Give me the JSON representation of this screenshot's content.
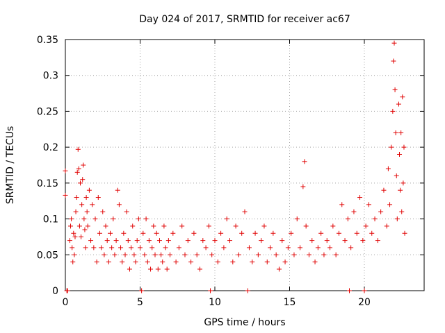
{
  "chart_data": {
    "type": "scatter",
    "title": "Day 024 of 2017, SRMTID for receiver ac67",
    "xlabel": "GPS time / hours",
    "ylabel": "SRMTID / TECUs",
    "xlim": [
      0,
      24
    ],
    "ylim": [
      0,
      0.35
    ],
    "xticks": [
      0,
      5,
      10,
      15,
      20
    ],
    "xtick_labels": [
      "0",
      "5",
      "10",
      "15",
      "20"
    ],
    "yticks": [
      0,
      0.05,
      0.1,
      0.15,
      0.2,
      0.25,
      0.3,
      0.35
    ],
    "ytick_labels": [
      "0",
      "0.05",
      "0.1",
      "0.15",
      "0.2",
      "0.25",
      "0.3",
      "0.35"
    ],
    "grid": true,
    "marker": "+",
    "color": "#e00000",
    "series": [
      {
        "name": "SRMTID",
        "points": [
          [
            0.0,
            0.167
          ],
          [
            0.0,
            0.133
          ],
          [
            0.1,
            0.0
          ],
          [
            0.15,
            0.0
          ],
          [
            0.3,
            0.07
          ],
          [
            0.35,
            0.09
          ],
          [
            0.4,
            0.1
          ],
          [
            0.45,
            0.06
          ],
          [
            0.5,
            0.04
          ],
          [
            0.55,
            0.08
          ],
          [
            0.6,
            0.05
          ],
          [
            0.65,
            0.075
          ],
          [
            0.7,
            0.11
          ],
          [
            0.75,
            0.13
          ],
          [
            0.8,
            0.165
          ],
          [
            0.85,
            0.197
          ],
          [
            0.9,
            0.17
          ],
          [
            0.95,
            0.09
          ],
          [
            1.0,
            0.15
          ],
          [
            1.05,
            0.075
          ],
          [
            1.1,
            0.12
          ],
          [
            1.15,
            0.155
          ],
          [
            1.2,
            0.175
          ],
          [
            1.25,
            0.1
          ],
          [
            1.3,
            0.085
          ],
          [
            1.35,
            0.06
          ],
          [
            1.4,
            0.13
          ],
          [
            1.45,
            0.11
          ],
          [
            1.5,
            0.09
          ],
          [
            1.6,
            0.14
          ],
          [
            1.7,
            0.07
          ],
          [
            1.8,
            0.12
          ],
          [
            1.9,
            0.06
          ],
          [
            2.0,
            0.1
          ],
          [
            2.1,
            0.04
          ],
          [
            2.2,
            0.13
          ],
          [
            2.3,
            0.08
          ],
          [
            2.4,
            0.06
          ],
          [
            2.5,
            0.11
          ],
          [
            2.6,
            0.05
          ],
          [
            2.7,
            0.09
          ],
          [
            2.8,
            0.07
          ],
          [
            2.9,
            0.04
          ],
          [
            3.0,
            0.08
          ],
          [
            3.1,
            0.06
          ],
          [
            3.2,
            0.1
          ],
          [
            3.3,
            0.05
          ],
          [
            3.4,
            0.07
          ],
          [
            3.5,
            0.14
          ],
          [
            3.6,
            0.12
          ],
          [
            3.7,
            0.06
          ],
          [
            3.8,
            0.04
          ],
          [
            3.9,
            0.08
          ],
          [
            4.0,
            0.05
          ],
          [
            4.1,
            0.11
          ],
          [
            4.2,
            0.07
          ],
          [
            4.3,
            0.03
          ],
          [
            4.4,
            0.06
          ],
          [
            4.5,
            0.09
          ],
          [
            4.6,
            0.05
          ],
          [
            4.7,
            0.04
          ],
          [
            4.8,
            0.07
          ],
          [
            4.9,
            0.1
          ],
          [
            5.0,
            0.06
          ],
          [
            5.1,
            0.0
          ],
          [
            5.2,
            0.08
          ],
          [
            5.3,
            0.05
          ],
          [
            5.4,
            0.1
          ],
          [
            5.5,
            0.04
          ],
          [
            5.6,
            0.07
          ],
          [
            5.7,
            0.03
          ],
          [
            5.8,
            0.06
          ],
          [
            5.9,
            0.09
          ],
          [
            6.0,
            0.05
          ],
          [
            6.1,
            0.08
          ],
          [
            6.2,
            0.03
          ],
          [
            6.3,
            0.07
          ],
          [
            6.4,
            0.05
          ],
          [
            6.5,
            0.04
          ],
          [
            6.6,
            0.09
          ],
          [
            6.7,
            0.06
          ],
          [
            6.8,
            0.03
          ],
          [
            6.9,
            0.07
          ],
          [
            7.0,
            0.05
          ],
          [
            7.2,
            0.08
          ],
          [
            7.4,
            0.04
          ],
          [
            7.6,
            0.06
          ],
          [
            7.8,
            0.09
          ],
          [
            8.0,
            0.05
          ],
          [
            8.2,
            0.07
          ],
          [
            8.4,
            0.04
          ],
          [
            8.6,
            0.08
          ],
          [
            8.8,
            0.05
          ],
          [
            9.0,
            0.03
          ],
          [
            9.2,
            0.07
          ],
          [
            9.4,
            0.06
          ],
          [
            9.6,
            0.09
          ],
          [
            9.7,
            0.0
          ],
          [
            9.8,
            0.05
          ],
          [
            10.0,
            0.07
          ],
          [
            10.2,
            0.04
          ],
          [
            10.4,
            0.08
          ],
          [
            10.6,
            0.06
          ],
          [
            10.8,
            0.1
          ],
          [
            11.0,
            0.07
          ],
          [
            11.2,
            0.04
          ],
          [
            11.4,
            0.09
          ],
          [
            11.6,
            0.05
          ],
          [
            11.8,
            0.08
          ],
          [
            12.0,
            0.11
          ],
          [
            12.2,
            0.0
          ],
          [
            12.3,
            0.06
          ],
          [
            12.5,
            0.04
          ],
          [
            12.7,
            0.08
          ],
          [
            12.9,
            0.05
          ],
          [
            13.1,
            0.07
          ],
          [
            13.3,
            0.09
          ],
          [
            13.5,
            0.04
          ],
          [
            13.7,
            0.06
          ],
          [
            13.9,
            0.08
          ],
          [
            14.1,
            0.05
          ],
          [
            14.3,
            0.03
          ],
          [
            14.5,
            0.07
          ],
          [
            14.7,
            0.04
          ],
          [
            14.9,
            0.06
          ],
          [
            15.1,
            0.08
          ],
          [
            15.3,
            0.05
          ],
          [
            15.5,
            0.1
          ],
          [
            15.7,
            0.06
          ],
          [
            15.9,
            0.145
          ],
          [
            16.0,
            0.18
          ],
          [
            16.1,
            0.09
          ],
          [
            16.3,
            0.05
          ],
          [
            16.5,
            0.07
          ],
          [
            16.7,
            0.04
          ],
          [
            16.9,
            0.06
          ],
          [
            17.1,
            0.08
          ],
          [
            17.3,
            0.05
          ],
          [
            17.5,
            0.07
          ],
          [
            17.7,
            0.06
          ],
          [
            17.9,
            0.09
          ],
          [
            18.1,
            0.05
          ],
          [
            18.3,
            0.08
          ],
          [
            18.5,
            0.12
          ],
          [
            18.7,
            0.07
          ],
          [
            18.9,
            0.1
          ],
          [
            19.0,
            0.0
          ],
          [
            19.1,
            0.06
          ],
          [
            19.3,
            0.11
          ],
          [
            19.5,
            0.08
          ],
          [
            19.7,
            0.13
          ],
          [
            19.9,
            0.07
          ],
          [
            20.0,
            0.0
          ],
          [
            20.1,
            0.09
          ],
          [
            20.3,
            0.12
          ],
          [
            20.5,
            0.08
          ],
          [
            20.7,
            0.1
          ],
          [
            20.9,
            0.07
          ],
          [
            21.1,
            0.11
          ],
          [
            21.3,
            0.14
          ],
          [
            21.5,
            0.09
          ],
          [
            21.6,
            0.17
          ],
          [
            21.7,
            0.12
          ],
          [
            21.8,
            0.2
          ],
          [
            21.9,
            0.25
          ],
          [
            21.95,
            0.32
          ],
          [
            22.0,
            0.345
          ],
          [
            22.05,
            0.28
          ],
          [
            22.1,
            0.22
          ],
          [
            22.15,
            0.16
          ],
          [
            22.2,
            0.1
          ],
          [
            22.3,
            0.26
          ],
          [
            22.35,
            0.19
          ],
          [
            22.4,
            0.14
          ],
          [
            22.45,
            0.22
          ],
          [
            22.5,
            0.11
          ],
          [
            22.55,
            0.27
          ],
          [
            22.6,
            0.15
          ],
          [
            22.65,
            0.2
          ],
          [
            22.7,
            0.08
          ]
        ]
      }
    ]
  }
}
